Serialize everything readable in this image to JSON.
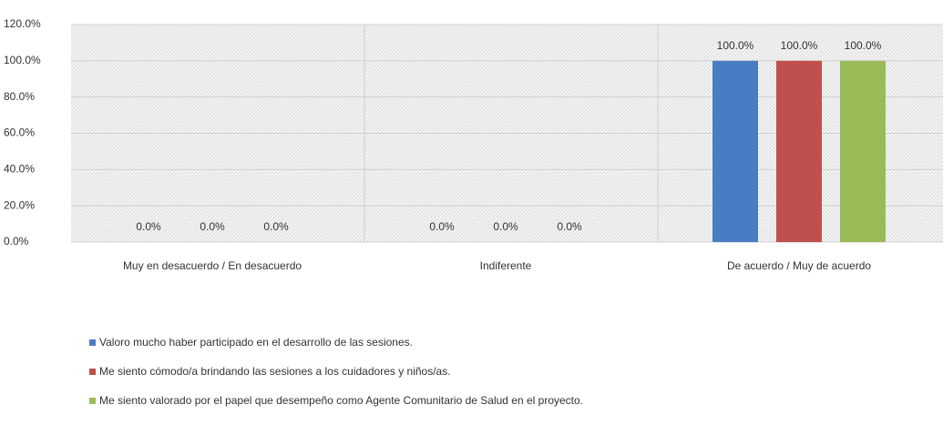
{
  "chart_data": {
    "type": "bar",
    "categories": [
      "Muy en desacuerdo / En desacuerdo",
      "Indiferente",
      "De acuerdo / Muy de acuerdo"
    ],
    "series": [
      {
        "name": "Valoro mucho haber participado en el desarrollo de las sesiones.",
        "color": "#4a7cc4",
        "values": [
          0,
          0,
          100
        ],
        "value_labels": [
          "0.0%",
          "0.0%",
          "100.0%"
        ]
      },
      {
        "name": "Me siento cómodo/a brindando las sesiones a los cuidadores y niños/as.",
        "color": "#c0504d",
        "values": [
          0,
          0,
          100
        ],
        "value_labels": [
          "0.0%",
          "0.0%",
          "100.0%"
        ]
      },
      {
        "name": "Me siento valorado por el papel que desempeño como Agente Comunitario de Salud en el proyecto.",
        "color": "#9bbb59",
        "values": [
          0,
          0,
          100
        ],
        "value_labels": [
          "0.0%",
          "0.0%",
          "100.0%"
        ]
      }
    ],
    "ylim": [
      0,
      120
    ],
    "yticks": [
      {
        "value": 0,
        "label": "0.0%"
      },
      {
        "value": 20,
        "label": "20.0%"
      },
      {
        "value": 40,
        "label": "40.0%"
      },
      {
        "value": 60,
        "label": "60.0%"
      },
      {
        "value": 80,
        "label": "80.0%"
      },
      {
        "value": 100,
        "label": "100.0%"
      },
      {
        "value": 120,
        "label": "120.0%"
      }
    ],
    "grid": true
  }
}
